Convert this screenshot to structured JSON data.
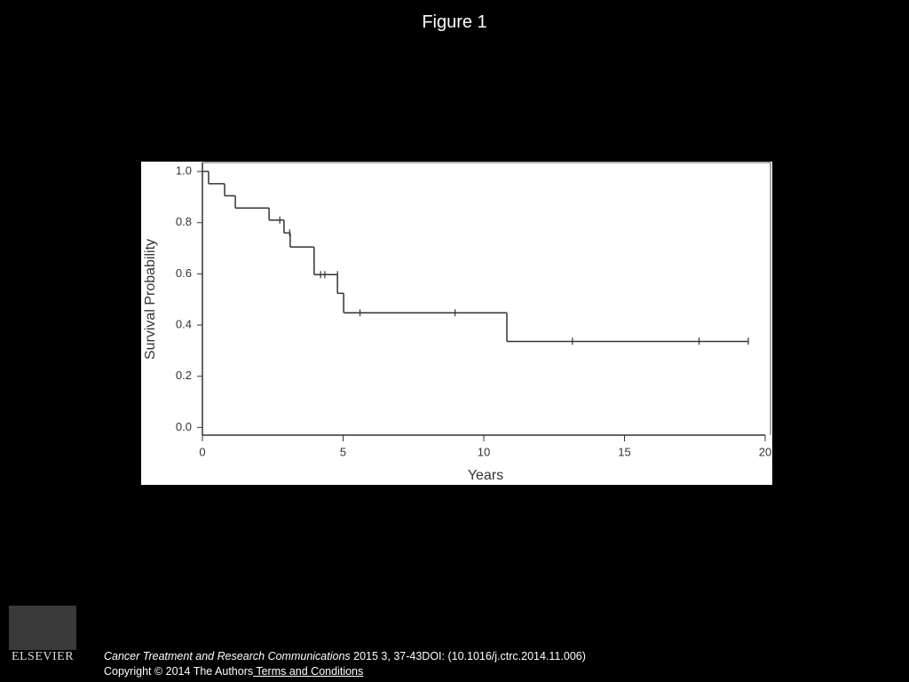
{
  "header": {
    "title": "Figure 1"
  },
  "chart_data": {
    "type": "step",
    "xlabel": "Years",
    "ylabel": "Survival Probability",
    "xlim": [
      0,
      20
    ],
    "ylim": [
      -0.03,
      1.035
    ],
    "xticks": [
      0,
      5,
      10,
      15,
      20
    ],
    "yticks": [
      {
        "value": 0,
        "label": "0.0"
      },
      {
        "value": 0.2,
        "label": "0.2"
      },
      {
        "value": 0.4,
        "label": "0.4"
      },
      {
        "value": 0.6,
        "label": "0.6"
      },
      {
        "value": 0.8,
        "label": "0.8"
      },
      {
        "value": 1,
        "label": "1.0"
      }
    ],
    "series": [
      {
        "color": "#333333",
        "x": [
          0,
          0.22,
          0.79,
          1.17,
          2.37,
          2.9,
          3.12,
          3.97,
          4.8,
          5.02,
          10.82,
          19.4
        ],
        "values": [
          1.0,
          0.952,
          0.905,
          0.857,
          0.81,
          0.76,
          0.705,
          0.597,
          0.524,
          0.448,
          0.336,
          0.336
        ]
      },
      {
        "color": "#333333",
        "marker": "censor",
        "x": [
          2.75,
          3.1,
          4.2,
          4.35,
          4.8,
          5.6,
          8.98,
          13.15,
          17.65,
          19.4
        ],
        "values": [
          0.81,
          0.76,
          0.597,
          0.597,
          0.597,
          0.448,
          0.448,
          0.337,
          0.337,
          0.337
        ]
      }
    ]
  },
  "footer": {
    "logo": "ELSEVIER",
    "journal": "Cancer Treatment and Research Communications",
    "citation": " 2015 3, 37-43DOI: (10.1016/j.ctrc.2014.11.006)",
    "copyright": "Copyright © 2014 The Authors",
    "link": " Terms and Conditions"
  }
}
